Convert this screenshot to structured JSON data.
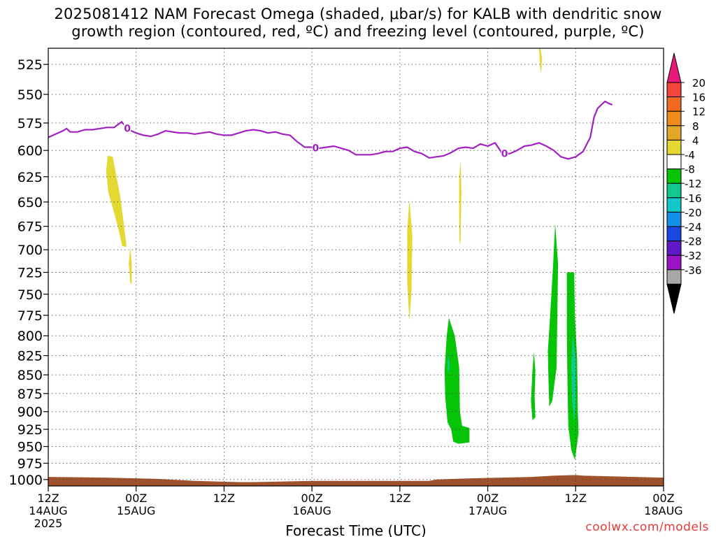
{
  "title_line1": "2025081412 NAM Forecast Omega (shaded, μbar/s) for KALB with dendritic snow",
  "title_line2": "growth region (contoured, red, ºC) and freezing level (contoured, purple, ºC)",
  "credit": "coolwx.com/models",
  "chart_data": {
    "type": "filled-contour time-height",
    "title": "2025081412 NAM Forecast Omega (shaded, μbar/s) for KALB with dendritic snow growth region (contoured, red, ºC) and freezing level (contoured, purple, ºC)",
    "xlabel": "Forecast Time (UTC)",
    "ylabel": "",
    "x_ticks": [
      {
        "hour": 0,
        "line1": "12Z",
        "line2": "14AUG",
        "line3": "2025"
      },
      {
        "hour": 12,
        "line1": "00Z",
        "line2": "15AUG",
        "line3": ""
      },
      {
        "hour": 24,
        "line1": "12Z",
        "line2": "",
        "line3": ""
      },
      {
        "hour": 36,
        "line1": "00Z",
        "line2": "16AUG",
        "line3": ""
      },
      {
        "hour": 48,
        "line1": "12Z",
        "line2": "",
        "line3": ""
      },
      {
        "hour": 60,
        "line1": "00Z",
        "line2": "17AUG",
        "line3": ""
      },
      {
        "hour": 72,
        "line1": "12Z",
        "line2": "",
        "line3": ""
      },
      {
        "hour": 84,
        "line1": "00Z",
        "line2": "18AUG",
        "line3": ""
      }
    ],
    "xlim_hours": [
      0,
      84
    ],
    "y_ticks": [
      525,
      550,
      575,
      600,
      625,
      650,
      675,
      700,
      725,
      750,
      775,
      800,
      825,
      850,
      875,
      900,
      925,
      950,
      975,
      1000
    ],
    "ylim_hpa": [
      1010,
      512
    ],
    "y_scale": "log-pressure",
    "grid": true,
    "colorbar": {
      "labels": [
        "20",
        "16",
        "12",
        "8",
        "4",
        "-4",
        "-8",
        "-12",
        "-16",
        "-20",
        "-24",
        "-28",
        "-32",
        "-36"
      ],
      "colors": [
        "#e8197a",
        "#f5453c",
        "#f06a20",
        "#f08a1e",
        "#e2a72a",
        "#e4d832",
        "#ffffff",
        "#06c406",
        "#10c890",
        "#10c8c8",
        "#1590e8",
        "#1a48e0",
        "#6018c8",
        "#9c12c8",
        "#a8a8a8",
        "#000000"
      ]
    },
    "freezing_level": {
      "label": "0",
      "color": "#a020c0",
      "points": [
        [
          0,
          588
        ],
        [
          1,
          585
        ],
        [
          2,
          582
        ],
        [
          2.5,
          580
        ],
        [
          3,
          583
        ],
        [
          4,
          583
        ],
        [
          5,
          581
        ],
        [
          6,
          581
        ],
        [
          7,
          580
        ],
        [
          8,
          579
        ],
        [
          9,
          579
        ],
        [
          10,
          574
        ],
        [
          11,
          581
        ],
        [
          12,
          584
        ],
        [
          13,
          586
        ],
        [
          14,
          587
        ],
        [
          15,
          585
        ],
        [
          16,
          582
        ],
        [
          17,
          583
        ],
        [
          18,
          584
        ],
        [
          19,
          584
        ],
        [
          20,
          585
        ],
        [
          21,
          584
        ],
        [
          22,
          583
        ],
        [
          23,
          585
        ],
        [
          24,
          586
        ],
        [
          25,
          586
        ],
        [
          26,
          584
        ],
        [
          27,
          582
        ],
        [
          28,
          581
        ],
        [
          29,
          582
        ],
        [
          30,
          584
        ],
        [
          31,
          583
        ],
        [
          32,
          585
        ],
        [
          33,
          586
        ],
        [
          34,
          592
        ],
        [
          35,
          597
        ],
        [
          36,
          597
        ],
        [
          37,
          598
        ],
        [
          38,
          597
        ],
        [
          39,
          596
        ],
        [
          40,
          598
        ],
        [
          41,
          600
        ],
        [
          42,
          604
        ],
        [
          43,
          604
        ],
        [
          44,
          604
        ],
        [
          45,
          603
        ],
        [
          46,
          601
        ],
        [
          47,
          601
        ],
        [
          48,
          598
        ],
        [
          49,
          597
        ],
        [
          50,
          601
        ],
        [
          51,
          603
        ],
        [
          52,
          607
        ],
        [
          53,
          606
        ],
        [
          54,
          605
        ],
        [
          55,
          602
        ],
        [
          56,
          598
        ],
        [
          57,
          597
        ],
        [
          58,
          598
        ],
        [
          59,
          594
        ],
        [
          60,
          596
        ],
        [
          61,
          593
        ],
        [
          62,
          603
        ],
        [
          63,
          603
        ],
        [
          64,
          600
        ],
        [
          65,
          596
        ],
        [
          66,
          595
        ],
        [
          67,
          593
        ],
        [
          68,
          596
        ],
        [
          69,
          600
        ],
        [
          70,
          606
        ],
        [
          71,
          608
        ],
        [
          72,
          606
        ],
        [
          73,
          601
        ],
        [
          74,
          588
        ],
        [
          74.5,
          570
        ],
        [
          75,
          562
        ],
        [
          76,
          556
        ],
        [
          76.6,
          558
        ],
        [
          77,
          559
        ]
      ]
    },
    "freezing_level_labels_hours": [
      10.8,
      36.5,
      62.3
    ],
    "omega_regions": [
      {
        "value_class": "4 to 8",
        "color": "#e4d832",
        "polygon": [
          [
            8.1,
            605
          ],
          [
            8.8,
            606
          ],
          [
            9.8,
            643
          ],
          [
            10.6,
            690
          ],
          [
            10.7,
            697
          ],
          [
            10.1,
            696
          ],
          [
            9.5,
            675
          ],
          [
            8.2,
            640
          ],
          [
            7.9,
            620
          ]
        ]
      },
      {
        "value_class": "4 to 8",
        "color": "#e4d832",
        "polygon": [
          [
            11.2,
            697
          ],
          [
            11.4,
            715
          ],
          [
            11.4,
            738
          ],
          [
            11.2,
            737
          ],
          [
            11.0,
            715
          ]
        ]
      },
      {
        "value_class": "4 to 8",
        "color": "#e4d832",
        "polygon": [
          [
            49.3,
            648
          ],
          [
            49.7,
            685
          ],
          [
            49.6,
            745
          ],
          [
            49.3,
            782
          ],
          [
            49.0,
            735
          ],
          [
            49.0,
            680
          ]
        ]
      },
      {
        "value_class": "4 to 8",
        "color": "#e4d832",
        "polygon": [
          [
            56.3,
            610
          ],
          [
            56.4,
            640
          ],
          [
            56.3,
            690
          ],
          [
            56.15,
            695
          ],
          [
            56.1,
            660
          ],
          [
            56.1,
            625
          ]
        ]
      },
      {
        "value_class": "4 to 8",
        "color": "#e4d832",
        "polygon": [
          [
            67.2,
            512
          ],
          [
            67.4,
            520
          ],
          [
            67.3,
            532
          ],
          [
            67.15,
            528
          ],
          [
            67.0,
            512
          ]
        ]
      },
      {
        "value_class": "-8 to -4",
        "color": "#06c406",
        "polygon": [
          [
            54.7,
            778
          ],
          [
            55.5,
            800
          ],
          [
            56.1,
            840
          ],
          [
            56.2,
            900
          ],
          [
            56.5,
            920
          ],
          [
            57.5,
            923
          ],
          [
            57.5,
            944
          ],
          [
            56.0,
            946
          ],
          [
            55.3,
            943
          ],
          [
            55.0,
            925
          ],
          [
            54.5,
            915
          ],
          [
            54.2,
            880
          ],
          [
            54.1,
            845
          ],
          [
            54.4,
            800
          ]
        ]
      },
      {
        "value_class": "-8 to -4",
        "color": "#06c406",
        "polygon": [
          [
            69.2,
            672
          ],
          [
            69.6,
            715
          ],
          [
            69.5,
            775
          ],
          [
            69.4,
            840
          ],
          [
            68.8,
            885
          ],
          [
            68.4,
            893
          ],
          [
            68.3,
            860
          ],
          [
            68.2,
            820
          ],
          [
            68.5,
            778
          ],
          [
            68.9,
            720
          ]
        ]
      },
      {
        "value_class": "-8 to -4",
        "color": "#06c406",
        "polygon": [
          [
            66.3,
            820
          ],
          [
            66.5,
            845
          ],
          [
            66.4,
            880
          ],
          [
            66.5,
            908
          ],
          [
            66.1,
            912
          ],
          [
            65.9,
            885
          ],
          [
            66.1,
            845
          ]
        ]
      },
      {
        "value_class": "-8 to -4",
        "color": "#06c406",
        "polygon": [
          [
            70.8,
            725
          ],
          [
            71.8,
            725
          ],
          [
            71.9,
            775
          ],
          [
            72.2,
            830
          ],
          [
            72.3,
            900
          ],
          [
            72.4,
            930
          ],
          [
            71.9,
            970
          ],
          [
            71.4,
            955
          ],
          [
            71.0,
            920
          ],
          [
            70.9,
            875
          ],
          [
            70.8,
            800
          ]
        ]
      },
      {
        "value_class": "-12 to -8",
        "color": "#10c890",
        "polygon": [
          [
            71.6,
            798
          ],
          [
            72.0,
            830
          ],
          [
            72.0,
            890
          ],
          [
            71.8,
            915
          ],
          [
            71.5,
            880
          ],
          [
            71.4,
            840
          ]
        ]
      },
      {
        "value_class": "-12 to -8",
        "color": "#10c890",
        "polygon": [
          [
            54.6,
            822
          ],
          [
            54.8,
            835
          ],
          [
            54.7,
            850
          ],
          [
            54.5,
            840
          ]
        ]
      }
    ],
    "terrain": {
      "color": "#a0522d",
      "top_profile": [
        [
          0,
          996
        ],
        [
          8,
          997
        ],
        [
          15,
          999
        ],
        [
          20,
          1002
        ],
        [
          26,
          1004
        ],
        [
          28,
          1004
        ],
        [
          36,
          1002
        ],
        [
          44,
          1002
        ],
        [
          52,
          1002
        ],
        [
          53,
          1000
        ],
        [
          58,
          998
        ],
        [
          66,
          996
        ],
        [
          69,
          994
        ],
        [
          72,
          993
        ],
        [
          73,
          994
        ],
        [
          84,
          997
        ]
      ]
    }
  }
}
